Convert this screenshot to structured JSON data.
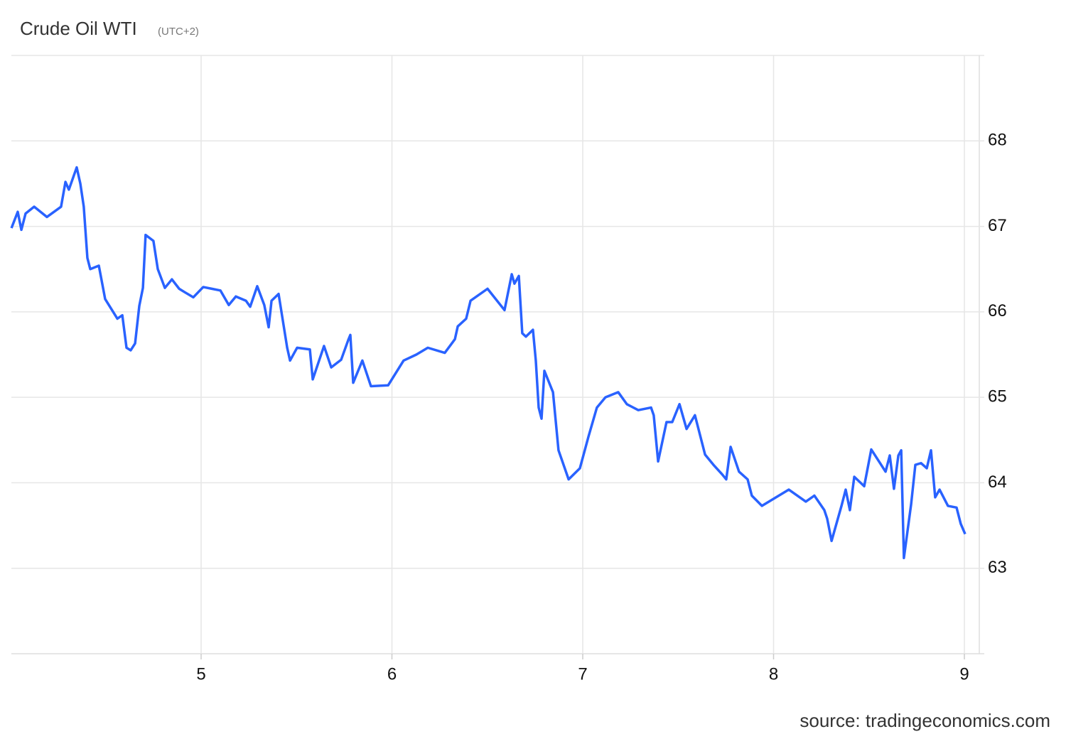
{
  "chart_data": {
    "type": "line",
    "title": "Crude Oil WTI",
    "subtitle": "(UTC+2)",
    "source": "source: tradingeconomics.com",
    "xlim": [
      4.0,
      9.07
    ],
    "xticks": [
      5,
      6,
      7,
      8,
      9
    ],
    "ylim": [
      62,
      69
    ],
    "yticks": [
      63,
      64,
      65,
      66,
      67,
      68
    ],
    "grid": true,
    "x": [
      4.006,
      4.039,
      4.058,
      4.08,
      4.125,
      4.192,
      4.266,
      4.289,
      4.307,
      4.348,
      4.367,
      4.385,
      4.404,
      4.419,
      4.464,
      4.497,
      4.561,
      4.587,
      4.609,
      4.631,
      4.654,
      4.676,
      4.695,
      4.709,
      4.75,
      4.773,
      4.81,
      4.847,
      4.885,
      4.914,
      4.959,
      5.011,
      5.056,
      5.101,
      5.145,
      5.182,
      5.235,
      5.257,
      5.294,
      5.331,
      5.354,
      5.369,
      5.406,
      5.451,
      5.466,
      5.503,
      5.57,
      5.585,
      5.644,
      5.682,
      5.734,
      5.771,
      5.782,
      5.797,
      5.845,
      5.89,
      5.98,
      6.061,
      6.128,
      6.188,
      6.277,
      6.33,
      6.345,
      6.389,
      6.412,
      6.501,
      6.59,
      6.628,
      6.642,
      6.665,
      6.683,
      6.702,
      6.739,
      6.754,
      6.769,
      6.784,
      6.799,
      6.844,
      6.873,
      6.926,
      6.985,
      7.03,
      7.074,
      7.119,
      7.186,
      7.231,
      7.291,
      7.358,
      7.372,
      7.395,
      7.439,
      7.469,
      7.507,
      7.544,
      7.588,
      7.641,
      7.685,
      7.73,
      7.752,
      7.775,
      7.819,
      7.864,
      7.886,
      7.939,
      8.013,
      8.08,
      8.169,
      8.214,
      8.266,
      8.281,
      8.304,
      8.356,
      8.378,
      8.4,
      8.423,
      8.475,
      8.512,
      8.564,
      8.587,
      8.609,
      8.631,
      8.654,
      8.669,
      8.683,
      8.721,
      8.743,
      8.773,
      8.803,
      8.825,
      8.847,
      8.87,
      8.914,
      8.959,
      8.981,
      9.004
    ],
    "series": [
      {
        "name": "Crude Oil WTI",
        "color": "#2962ff",
        "values": [
          66.98,
          67.17,
          66.96,
          67.15,
          67.23,
          67.11,
          67.23,
          67.52,
          67.43,
          67.69,
          67.5,
          67.23,
          66.63,
          66.5,
          66.54,
          66.15,
          65.92,
          65.96,
          65.58,
          65.55,
          65.63,
          66.07,
          66.28,
          66.9,
          66.83,
          66.5,
          66.28,
          66.38,
          66.27,
          66.23,
          66.17,
          66.29,
          66.27,
          66.25,
          66.08,
          66.18,
          66.13,
          66.06,
          66.3,
          66.08,
          65.82,
          66.13,
          66.21,
          65.58,
          65.43,
          65.58,
          65.56,
          65.21,
          65.6,
          65.35,
          65.44,
          65.67,
          65.73,
          65.17,
          65.43,
          65.13,
          65.14,
          65.43,
          65.5,
          65.58,
          65.52,
          65.68,
          65.83,
          65.92,
          66.13,
          66.27,
          66.02,
          66.44,
          66.33,
          66.42,
          65.75,
          65.71,
          65.79,
          65.43,
          64.88,
          64.75,
          65.31,
          65.06,
          64.38,
          64.04,
          64.17,
          64.54,
          64.88,
          65.0,
          65.06,
          64.92,
          64.85,
          64.88,
          64.79,
          64.25,
          64.71,
          64.71,
          64.92,
          64.63,
          64.79,
          64.33,
          64.21,
          64.1,
          64.04,
          64.42,
          64.13,
          64.04,
          63.85,
          63.73,
          63.83,
          63.92,
          63.78,
          63.85,
          63.68,
          63.58,
          63.32,
          63.73,
          63.92,
          63.68,
          64.07,
          63.96,
          64.39,
          64.21,
          64.13,
          64.32,
          63.93,
          64.32,
          64.38,
          63.12,
          63.75,
          64.21,
          64.23,
          64.17,
          64.38,
          63.83,
          63.92,
          63.73,
          63.71,
          63.52,
          63.4
        ]
      }
    ]
  }
}
